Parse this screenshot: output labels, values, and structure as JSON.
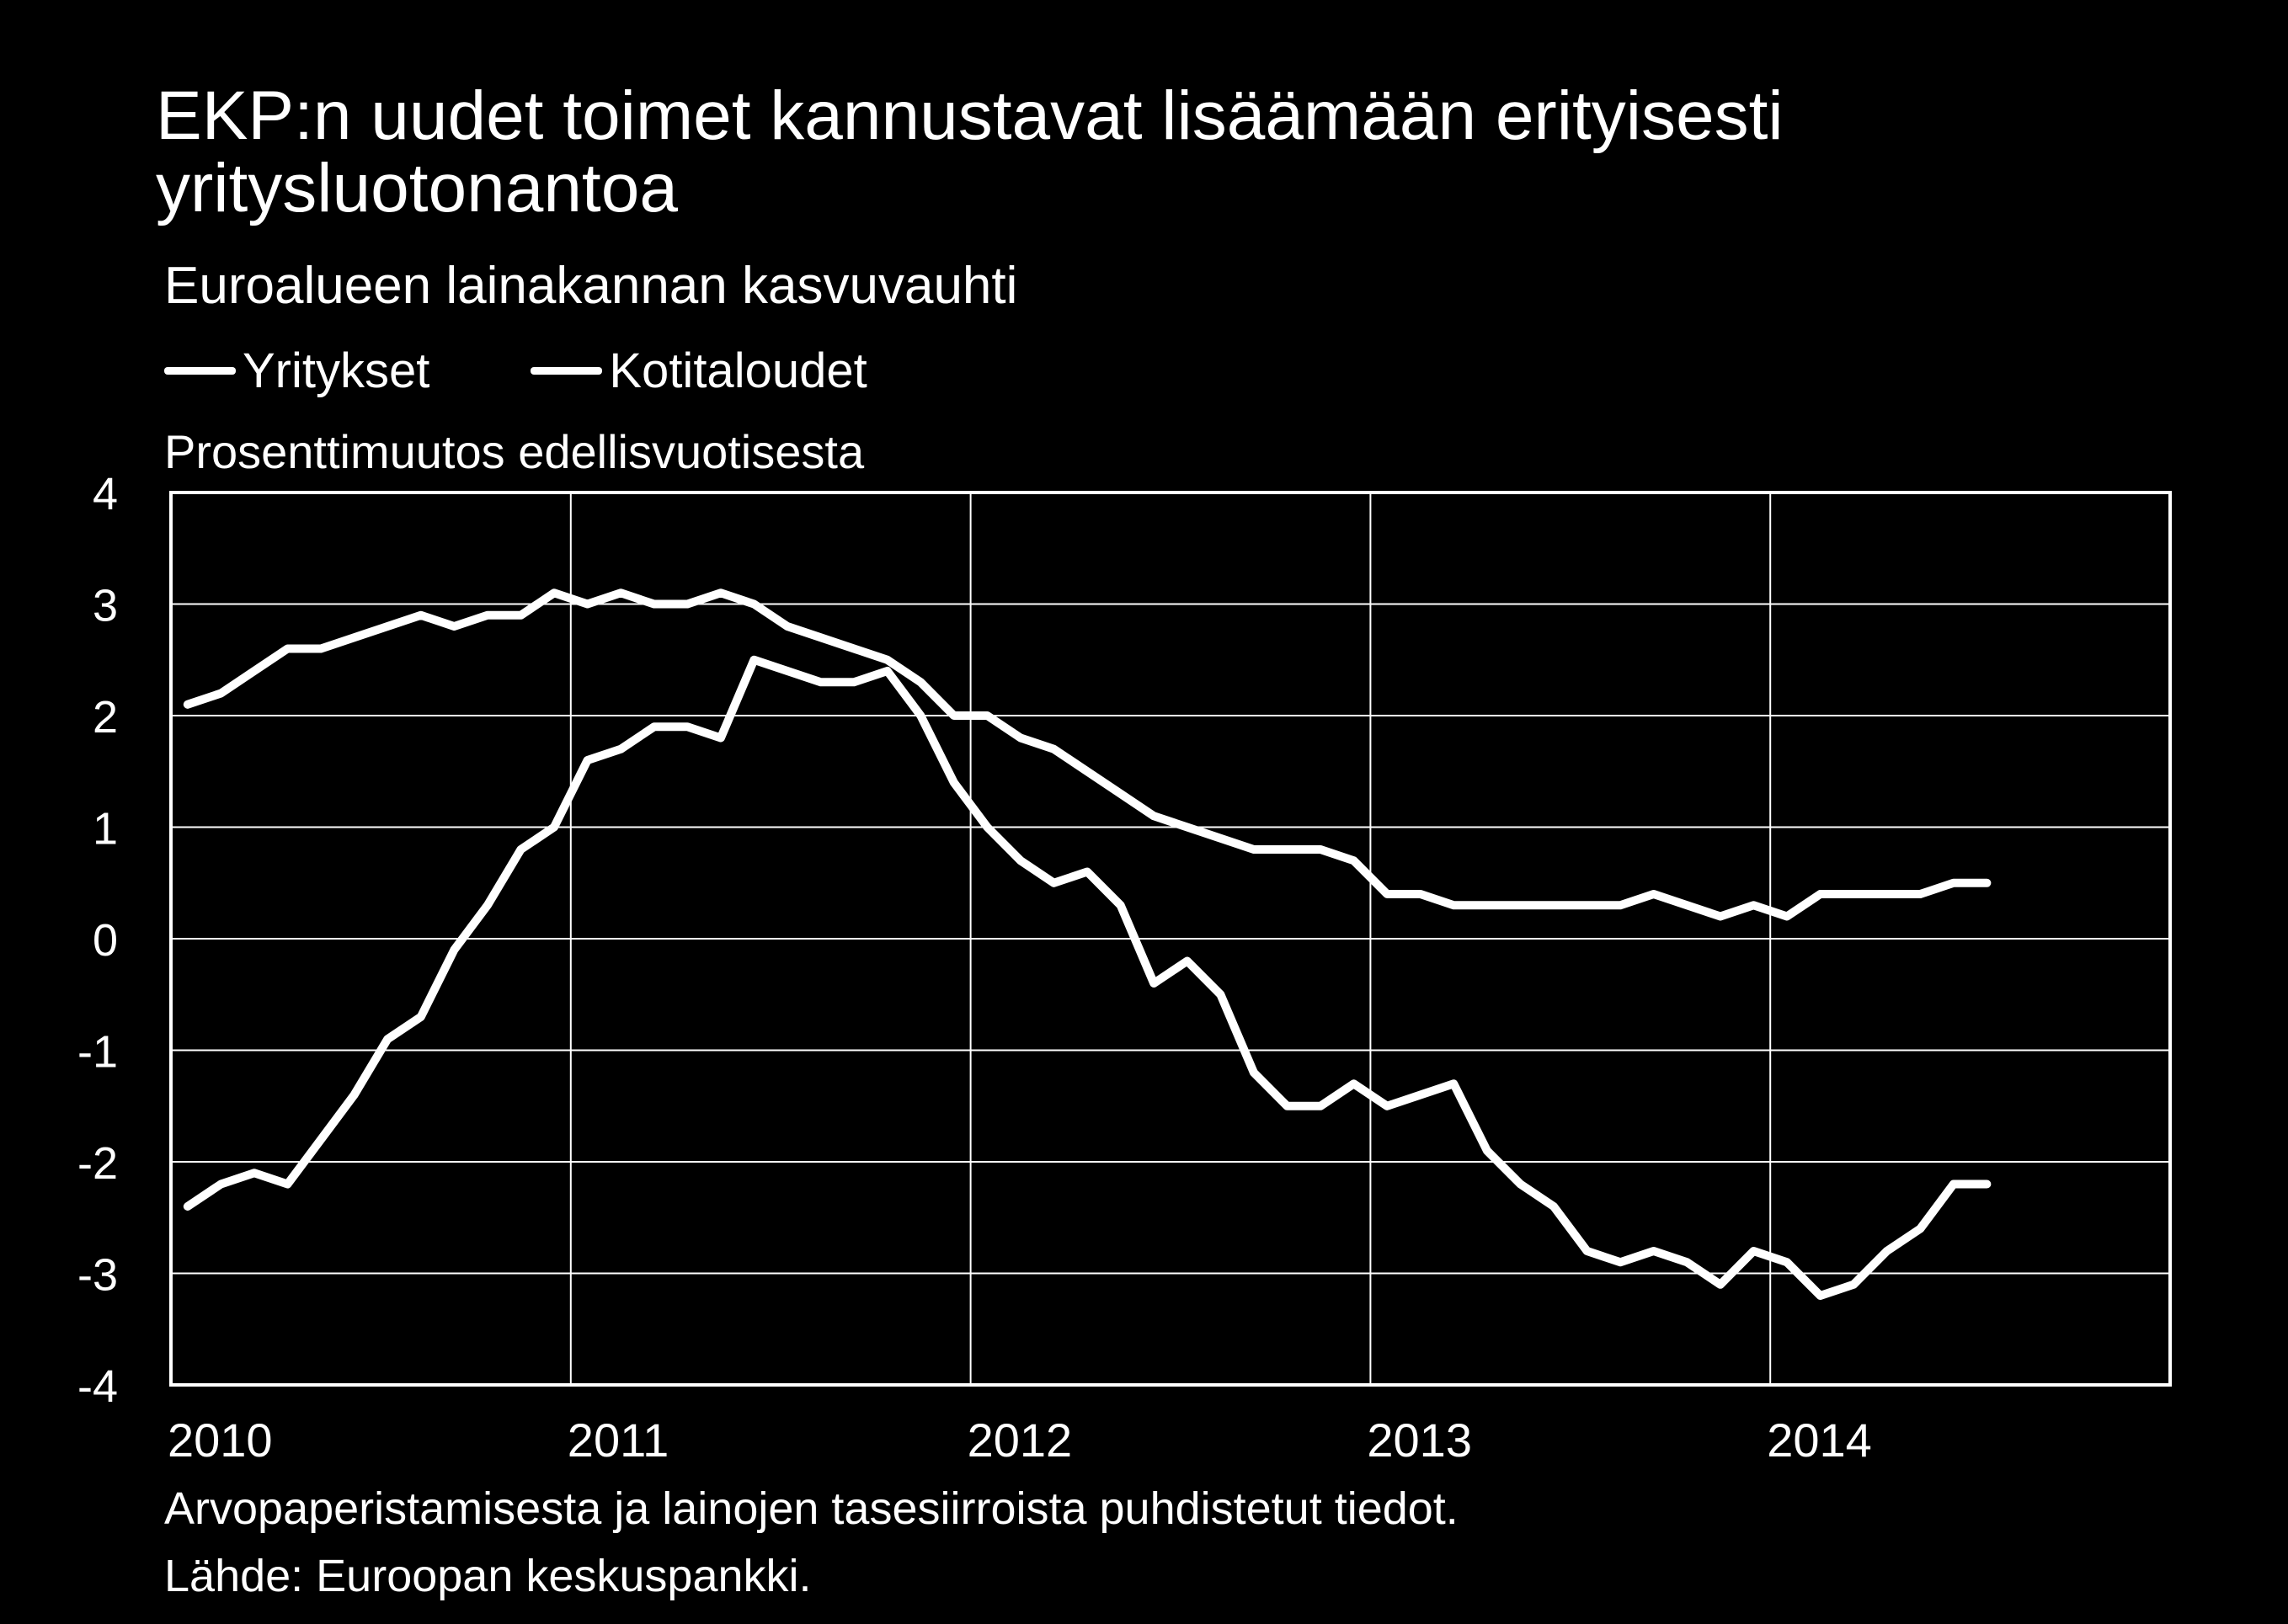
{
  "chart_data": {
    "type": "line",
    "title": "EKP:n uudet toimet kannustavat lisäämään erityisesti yritysluotonantoa",
    "subtitle": "Euroalueen lainakannan kasvuvauhti",
    "ylabel": "Prosenttimuutos edellisvuotisesta",
    "ylim": [
      -4,
      4
    ],
    "yticks": [
      "4",
      "3",
      "2",
      "1",
      "0",
      "-1",
      "-2",
      "-3",
      "-4"
    ],
    "xticks": [
      "2010",
      "2011",
      "2012",
      "2013",
      "2014"
    ],
    "grid": true,
    "legend": "top-left",
    "x_start": "2010-01",
    "series": [
      {
        "name": "Yritykset",
        "color": "#ffffff",
        "values": [
          -2.4,
          -2.2,
          -2.1,
          -2.2,
          -1.8,
          -1.4,
          -0.9,
          -0.7,
          -0.1,
          0.3,
          0.8,
          1.0,
          1.6,
          1.7,
          1.9,
          1.9,
          1.8,
          2.5,
          2.4,
          2.3,
          2.3,
          2.4,
          2.0,
          1.4,
          1.0,
          0.7,
          0.5,
          0.6,
          0.3,
          -0.4,
          -0.2,
          -0.5,
          -1.2,
          -1.5,
          -1.5,
          -1.3,
          -1.5,
          -1.4,
          -1.3,
          -1.9,
          -2.2,
          -2.4,
          -2.8,
          -2.9,
          -2.8,
          -2.9,
          -3.1,
          -2.8,
          -2.9,
          -3.2,
          -3.1,
          -2.8,
          -2.6,
          -2.2,
          -2.2
        ]
      },
      {
        "name": "Kotitaloudet",
        "color": "#ffffff",
        "values": [
          2.1,
          2.2,
          2.4,
          2.6,
          2.6,
          2.7,
          2.8,
          2.9,
          2.8,
          2.9,
          2.9,
          3.1,
          3.0,
          3.1,
          3.0,
          3.0,
          3.1,
          3.0,
          2.8,
          2.7,
          2.6,
          2.5,
          2.3,
          2.0,
          2.0,
          1.8,
          1.7,
          1.5,
          1.3,
          1.1,
          1.0,
          0.9,
          0.8,
          0.8,
          0.8,
          0.7,
          0.4,
          0.4,
          0.3,
          0.3,
          0.3,
          0.3,
          0.3,
          0.3,
          0.4,
          0.3,
          0.2,
          0.3,
          0.2,
          0.4,
          0.4,
          0.4,
          0.4,
          0.5,
          0.5
        ]
      }
    ]
  },
  "footnote": "Arvopaperistamisesta ja lainojen tasesiirroista puhdistetut tiedot.",
  "source": "Lähde: Euroopan keskuspankki."
}
